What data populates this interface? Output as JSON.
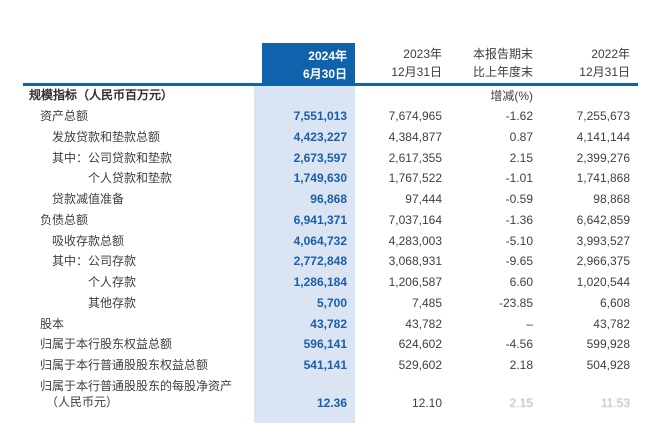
{
  "colors": {
    "primary_blue": "#0f63ac",
    "highlight_band": "#dbe4f3",
    "value_blue": "#1a5fa8",
    "body_text": "#3f3f3f"
  },
  "table": {
    "header": {
      "current": {
        "line1": "2024年",
        "line2": "6月30日"
      },
      "prev": {
        "line1": "2023年",
        "line2": "12月31日"
      },
      "change": {
        "line1": "本报告期末",
        "line2": "比上年度末"
      },
      "prev2": {
        "line1": "2022年",
        "line2": "12月31日"
      }
    },
    "section_label": "规模指标（人民币百万元）",
    "change_unit_label": "增减(%)",
    "rows": [
      {
        "label": "资产总额",
        "indent": 1,
        "current": "7,551,013",
        "prev": "7,674,965",
        "change": "-1.62",
        "prev2": "7,255,673"
      },
      {
        "label": "发放贷款和垫款总额",
        "indent": 2,
        "current": "4,423,227",
        "prev": "4,384,877",
        "change": "0.87",
        "prev2": "4,141,144"
      },
      {
        "label": "其中：公司贷款和垫款",
        "indent": 2,
        "current": "2,673,597",
        "prev": "2,617,355",
        "change": "2.15",
        "prev2": "2,399,276"
      },
      {
        "label": "个人贷款和垫款",
        "indent": 3,
        "current": "1,749,630",
        "prev": "1,767,522",
        "change": "-1.01",
        "prev2": "1,741,868"
      },
      {
        "label": "贷款减值准备",
        "indent": 2,
        "current": "96,868",
        "prev": "97,444",
        "change": "-0.59",
        "prev2": "98,868"
      },
      {
        "label": "负债总额",
        "indent": 1,
        "current": "6,941,371",
        "prev": "7,037,164",
        "change": "-1.36",
        "prev2": "6,642,859"
      },
      {
        "label": "吸收存款总额",
        "indent": 2,
        "current": "4,064,732",
        "prev": "4,283,003",
        "change": "-5.10",
        "prev2": "3,993,527"
      },
      {
        "label": "其中：公司存款",
        "indent": 2,
        "current": "2,772,848",
        "prev": "3,068,931",
        "change": "-9.65",
        "prev2": "2,966,375"
      },
      {
        "label": "个人存款",
        "indent": 3,
        "current": "1,286,184",
        "prev": "1,206,587",
        "change": "6.60",
        "prev2": "1,020,544"
      },
      {
        "label": "其他存款",
        "indent": 3,
        "current": "5,700",
        "prev": "7,485",
        "change": "-23.85",
        "prev2": "6,608"
      },
      {
        "label": "股本",
        "indent": 1,
        "current": "43,782",
        "prev": "43,782",
        "change": "–",
        "prev2": "43,782"
      },
      {
        "label": "归属于本行股东权益总额",
        "indent": 1,
        "current": "596,141",
        "prev": "624,602",
        "change": "-4.56",
        "prev2": "599,928"
      },
      {
        "label": "归属于本行普通股股东权益总额",
        "indent": 1,
        "current": "541,141",
        "prev": "529,602",
        "change": "2.18",
        "prev2": "504,928"
      },
      {
        "label": "归属于本行普通股股东的每股净资产",
        "label2": "（人民币元）",
        "indent": 1,
        "tall": true,
        "faded": true,
        "current": "12.36",
        "prev": "12.10",
        "change": "2.15",
        "prev2": "11.53"
      }
    ]
  }
}
